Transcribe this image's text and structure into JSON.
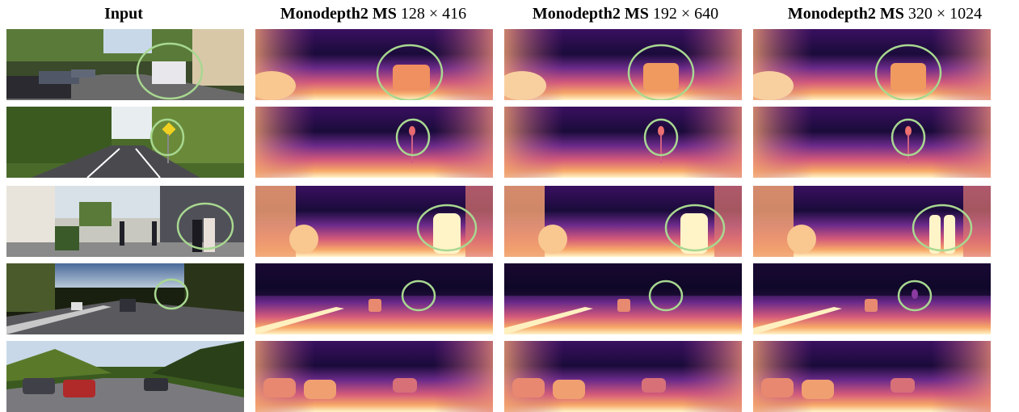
{
  "headers": {
    "input": "Input",
    "col1": {
      "method": "Monodepth2 MS",
      "resolution": "128 × 416"
    },
    "col2": {
      "method": "Monodepth2 MS",
      "resolution": "192 × 640"
    },
    "col3": {
      "method": "Monodepth2 MS",
      "resolution": "320 × 1024"
    }
  },
  "colors": {
    "highlight_circle": "#a8d890",
    "depth_far": "#0c0722",
    "depth_mid": "#7a2c8f",
    "depth_near": "#f5a06a",
    "depth_nearest": "#fff6c8"
  }
}
